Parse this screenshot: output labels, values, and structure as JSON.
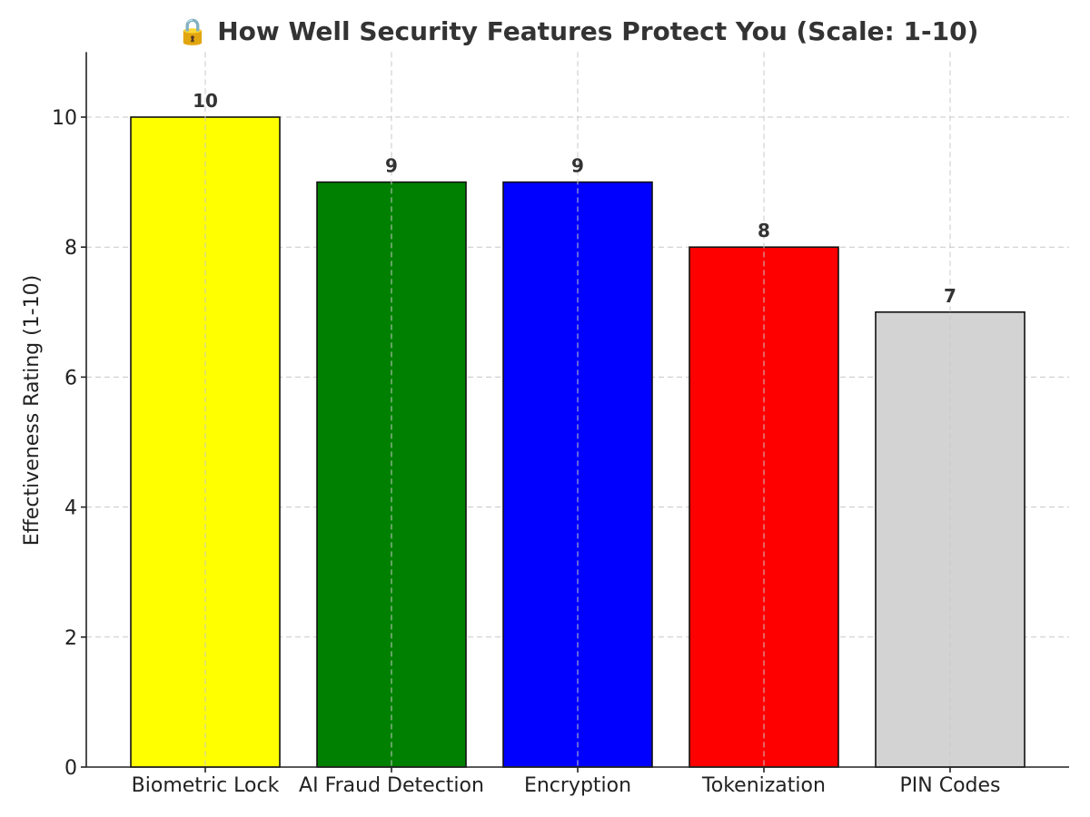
{
  "chart_data": {
    "type": "bar",
    "title": "🔒 How Well Security Features Protect You (Scale: 1-10)",
    "xlabel": "",
    "ylabel": "Effectiveness Rating (1-10)",
    "categories": [
      "Biometric Lock",
      "AI Fraud Detection",
      "Encryption",
      "Tokenization",
      "PIN Codes"
    ],
    "values": [
      10,
      9,
      9,
      8,
      7
    ],
    "value_labels": [
      "10",
      "9",
      "9",
      "8",
      "7"
    ],
    "colors": [
      "#ffff00",
      "#008000",
      "#0000ff",
      "#ff0000",
      "#d3d3d3"
    ],
    "ylim": [
      0,
      11
    ],
    "yticks": [
      0,
      2,
      4,
      6,
      8,
      10
    ],
    "grid": true,
    "legend": "none"
  }
}
